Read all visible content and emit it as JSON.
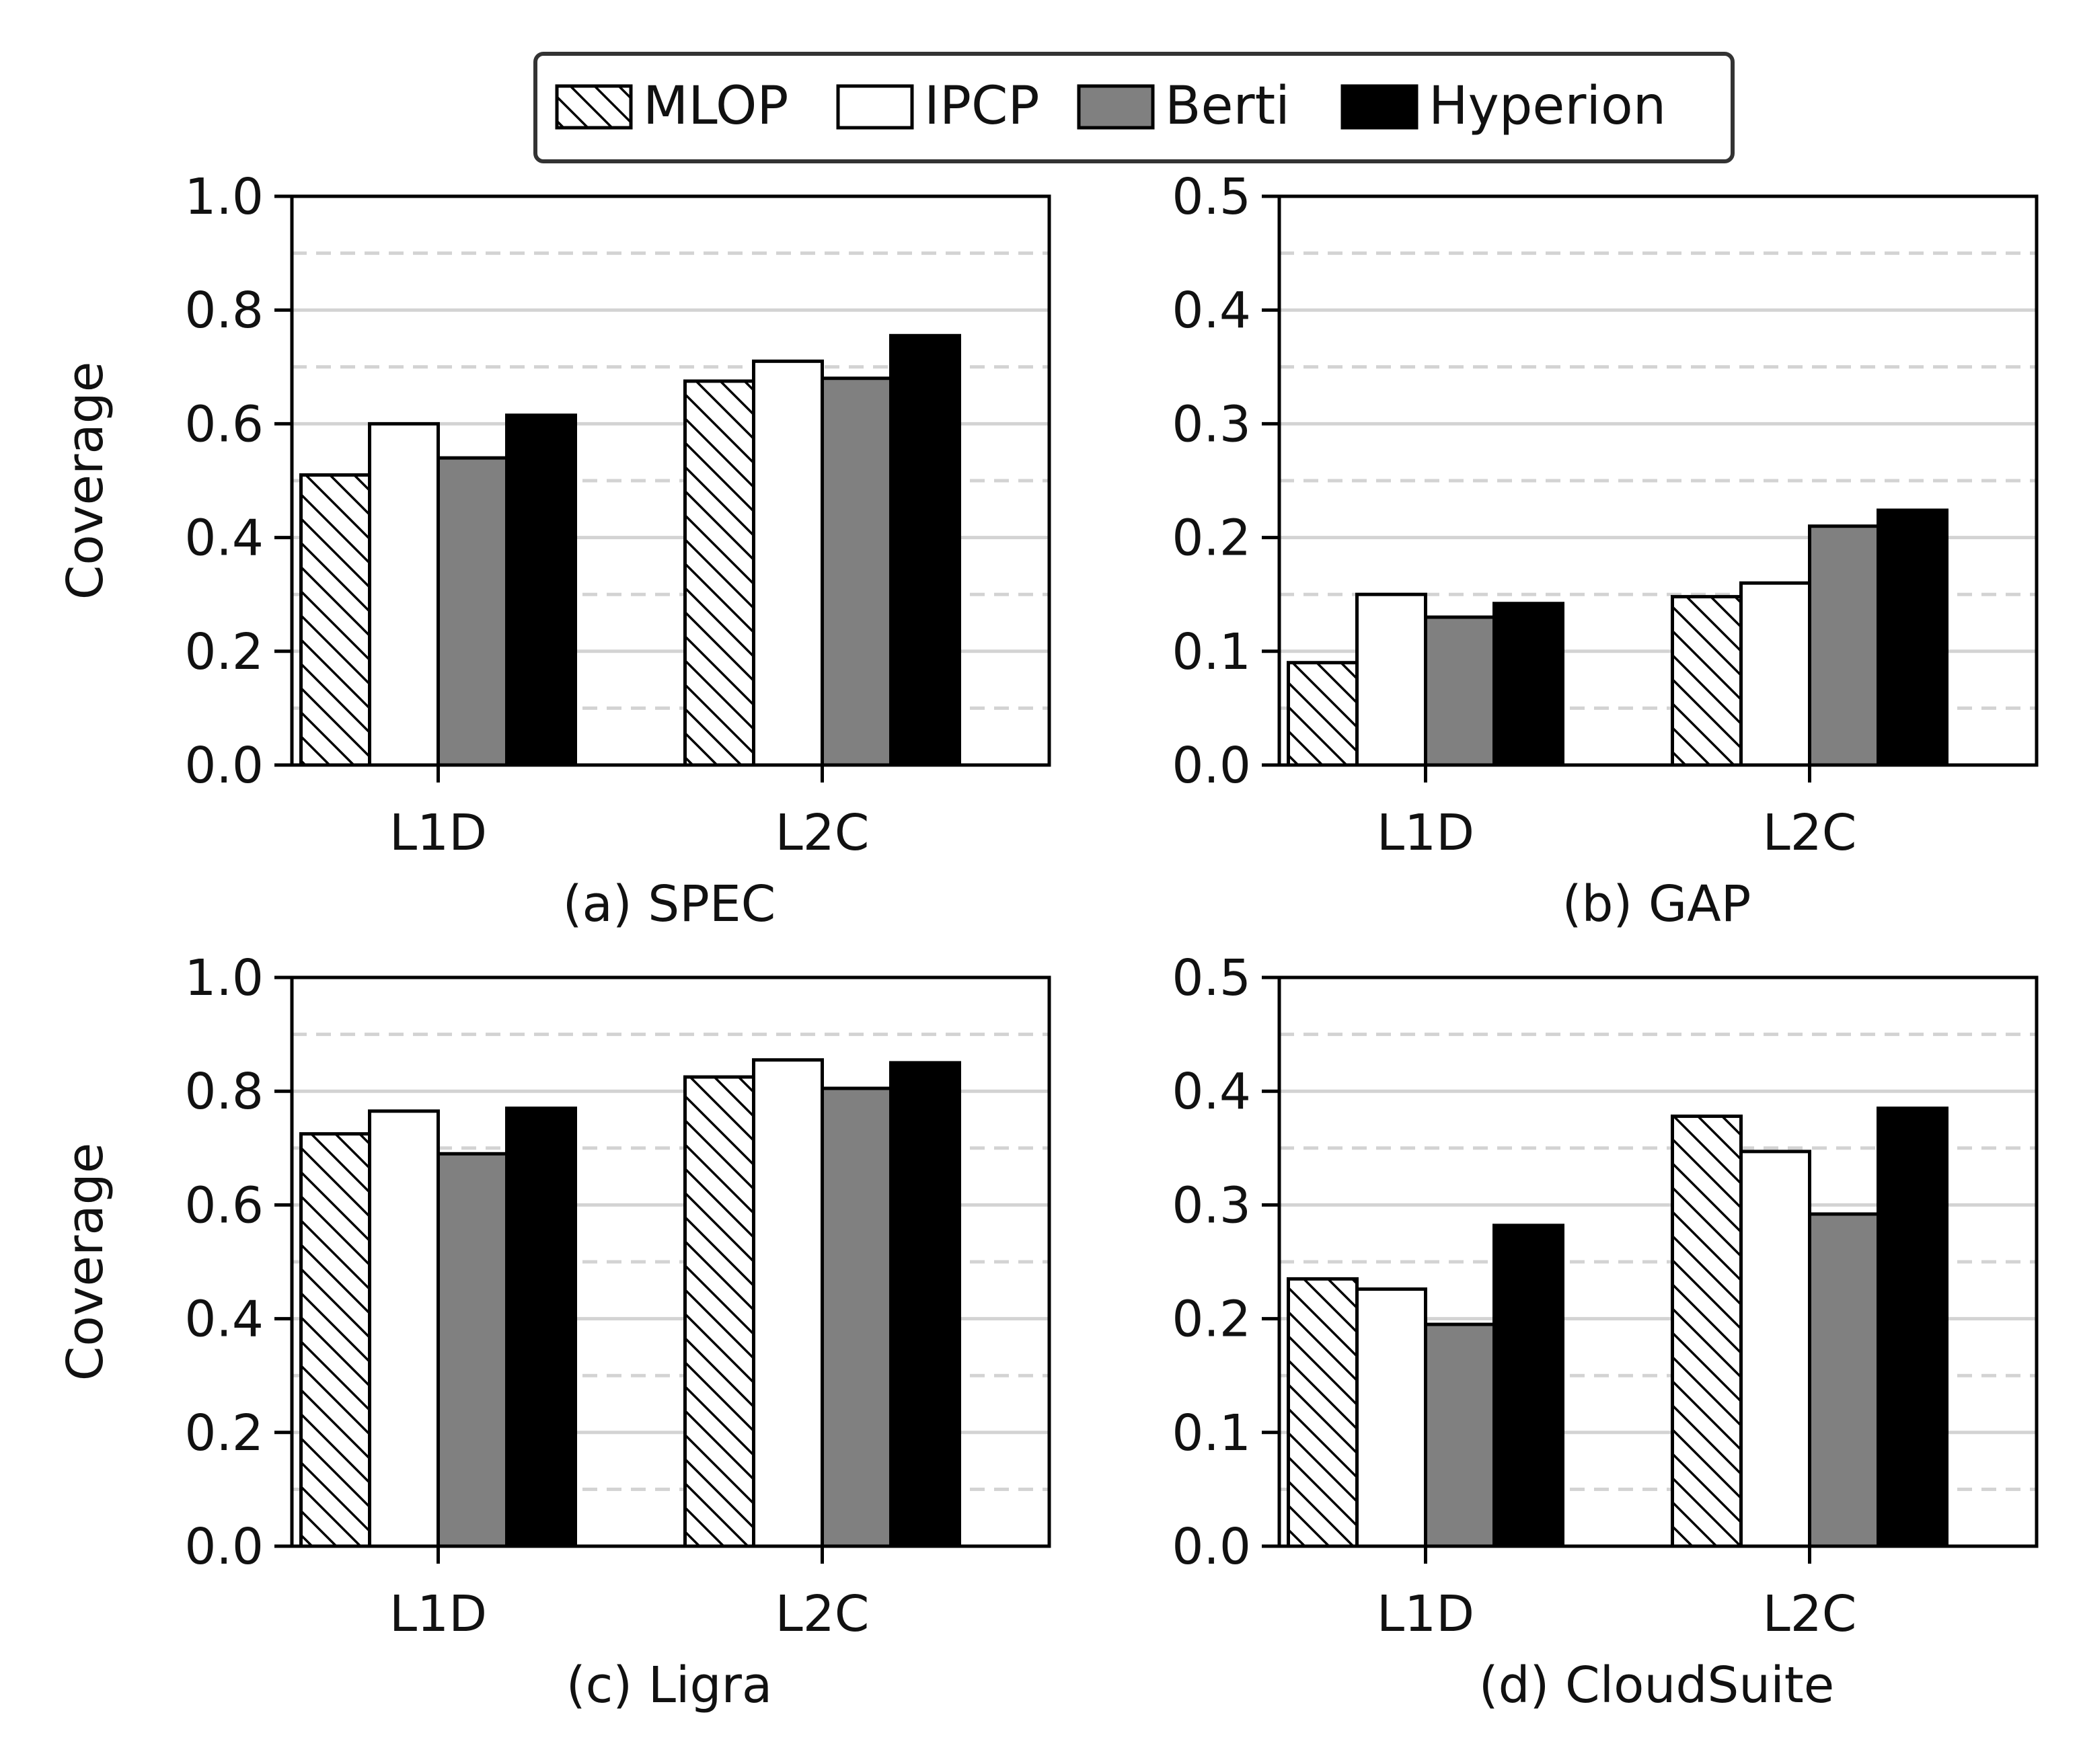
{
  "legend": {
    "entries": [
      {
        "name": "MLOP",
        "fill": "#ffffff",
        "hatch": true
      },
      {
        "name": "IPCP",
        "fill": "#ffffff",
        "hatch": false
      },
      {
        "name": "Berti",
        "fill": "#808080",
        "hatch": false
      },
      {
        "name": "Hyperion",
        "fill": "#000000",
        "hatch": false
      }
    ],
    "placement": "top-center"
  },
  "chart_data": [
    {
      "type": "bar",
      "caption": "(a) SPEC",
      "ylabel": "Coverage",
      "categories": [
        "L1D",
        "L2C"
      ],
      "ylim": [
        0,
        1.0
      ],
      "yticks": [
        "0.0",
        "0.2",
        "0.4",
        "0.6",
        "0.8",
        "1.0"
      ],
      "grid": true,
      "series": [
        {
          "name": "MLOP",
          "values": [
            0.51,
            0.675
          ]
        },
        {
          "name": "IPCP",
          "values": [
            0.6,
            0.71
          ]
        },
        {
          "name": "Berti",
          "values": [
            0.54,
            0.68
          ]
        },
        {
          "name": "Hyperion",
          "values": [
            0.615,
            0.755
          ]
        }
      ]
    },
    {
      "type": "bar",
      "caption": "(b) GAP",
      "ylabel": "",
      "categories": [
        "L1D",
        "L2C"
      ],
      "ylim": [
        0,
        0.5
      ],
      "yticks": [
        "0.0",
        "0.1",
        "0.2",
        "0.3",
        "0.4",
        "0.5"
      ],
      "grid": true,
      "series": [
        {
          "name": "MLOP",
          "values": [
            0.09,
            0.148
          ]
        },
        {
          "name": "IPCP",
          "values": [
            0.15,
            0.16
          ]
        },
        {
          "name": "Berti",
          "values": [
            0.13,
            0.21
          ]
        },
        {
          "name": "Hyperion",
          "values": [
            0.142,
            0.224
          ]
        }
      ]
    },
    {
      "type": "bar",
      "caption": "(c) Ligra",
      "ylabel": "Coverage",
      "categories": [
        "L1D",
        "L2C"
      ],
      "ylim": [
        0,
        1.0
      ],
      "yticks": [
        "0.0",
        "0.2",
        "0.4",
        "0.6",
        "0.8",
        "1.0"
      ],
      "grid": true,
      "series": [
        {
          "name": "MLOP",
          "values": [
            0.725,
            0.825
          ]
        },
        {
          "name": "IPCP",
          "values": [
            0.765,
            0.855
          ]
        },
        {
          "name": "Berti",
          "values": [
            0.69,
            0.805
          ]
        },
        {
          "name": "Hyperion",
          "values": [
            0.77,
            0.85
          ]
        }
      ]
    },
    {
      "type": "bar",
      "caption": "(d) CloudSuite",
      "ylabel": "",
      "categories": [
        "L1D",
        "L2C"
      ],
      "ylim": [
        0,
        0.5
      ],
      "yticks": [
        "0.0",
        "0.1",
        "0.2",
        "0.3",
        "0.4",
        "0.5"
      ],
      "grid": true,
      "series": [
        {
          "name": "MLOP",
          "values": [
            0.235,
            0.378
          ]
        },
        {
          "name": "IPCP",
          "values": [
            0.226,
            0.347
          ]
        },
        {
          "name": "Berti",
          "values": [
            0.195,
            0.292
          ]
        },
        {
          "name": "Hyperion",
          "values": [
            0.282,
            0.385
          ]
        }
      ]
    }
  ]
}
